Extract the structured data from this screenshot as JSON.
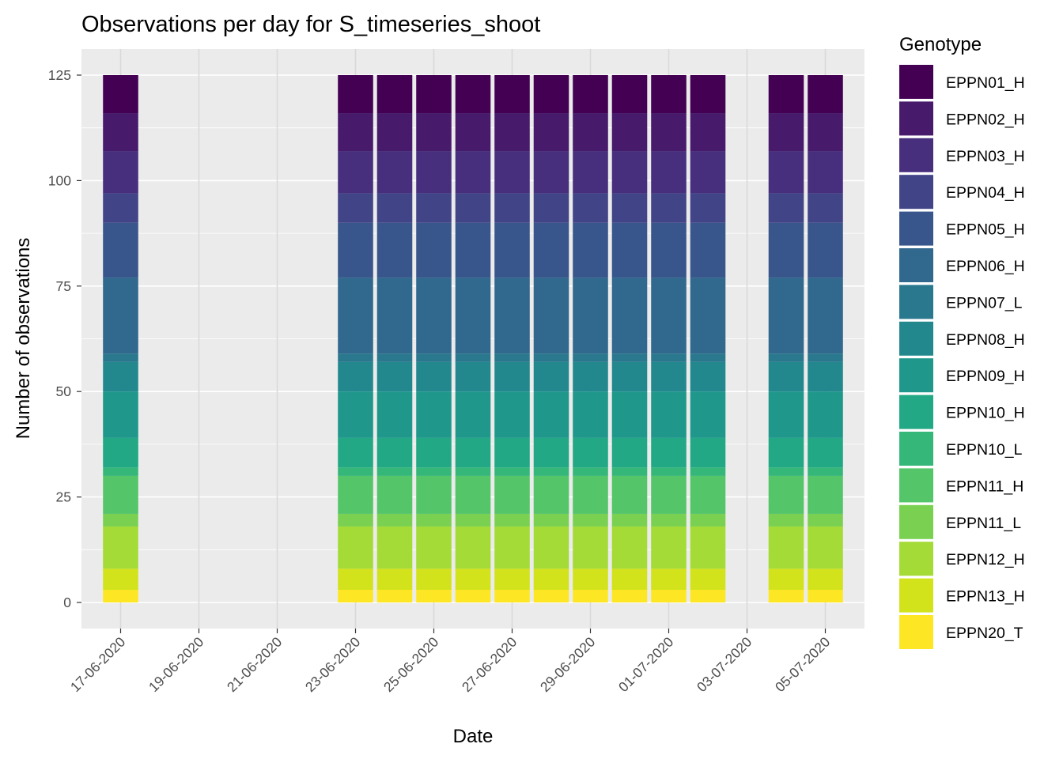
{
  "chart_data": {
    "type": "bar",
    "stacked": true,
    "title": "Observations per day for S_timeseries_shoot",
    "xlabel": "Date",
    "ylabel": "Number of observations",
    "ylim": [
      -5,
      130
    ],
    "y_ticks": [
      0,
      25,
      50,
      75,
      100,
      125
    ],
    "x_ticks": [
      "17-06-2020",
      "19-06-2020",
      "21-06-2020",
      "23-06-2020",
      "25-06-2020",
      "27-06-2020",
      "29-06-2020",
      "01-07-2020",
      "03-07-2020",
      "05-07-2020"
    ],
    "x_range": [
      "16-06-2020",
      "06-07-2020"
    ],
    "grid": true,
    "legend_position": "right",
    "legend_title": "Genotype",
    "categories": [
      "17-06-2020",
      "23-06-2020",
      "24-06-2020",
      "25-06-2020",
      "26-06-2020",
      "27-06-2020",
      "28-06-2020",
      "29-06-2020",
      "30-06-2020",
      "01-07-2020",
      "02-07-2020",
      "04-07-2020",
      "05-07-2020"
    ],
    "series": [
      {
        "name": "EPPN01_H",
        "color": "#440154",
        "values": [
          9,
          9,
          9,
          9,
          9,
          9,
          9,
          9,
          9,
          9,
          9,
          9,
          9
        ]
      },
      {
        "name": "EPPN02_H",
        "color": "#481A6C",
        "values": [
          9,
          9,
          9,
          9,
          9,
          9,
          9,
          9,
          9,
          9,
          9,
          9,
          9
        ]
      },
      {
        "name": "EPPN03_H",
        "color": "#472F7D",
        "values": [
          10,
          10,
          10,
          10,
          10,
          10,
          10,
          10,
          10,
          10,
          10,
          10,
          10
        ]
      },
      {
        "name": "EPPN04_H",
        "color": "#414487",
        "values": [
          7,
          7,
          7,
          7,
          7,
          7,
          7,
          7,
          7,
          7,
          7,
          7,
          7
        ]
      },
      {
        "name": "EPPN05_H",
        "color": "#39568C",
        "values": [
          13,
          13,
          13,
          13,
          13,
          13,
          13,
          13,
          13,
          13,
          13,
          13,
          13
        ]
      },
      {
        "name": "EPPN06_H",
        "color": "#31688E",
        "values": [
          18,
          18,
          18,
          18,
          18,
          18,
          18,
          18,
          18,
          18,
          18,
          18,
          18
        ]
      },
      {
        "name": "EPPN07_L",
        "color": "#2A788E",
        "values": [
          2,
          2,
          2,
          2,
          2,
          2,
          2,
          2,
          2,
          2,
          2,
          2,
          2
        ]
      },
      {
        "name": "EPPN08_H",
        "color": "#23888E",
        "values": [
          7,
          7,
          7,
          7,
          7,
          7,
          7,
          7,
          7,
          7,
          7,
          7,
          7
        ]
      },
      {
        "name": "EPPN09_H",
        "color": "#1F988B",
        "values": [
          11,
          11,
          11,
          11,
          11,
          11,
          11,
          11,
          11,
          11,
          11,
          11,
          11
        ]
      },
      {
        "name": "EPPN10_H",
        "color": "#22A884",
        "values": [
          7,
          7,
          7,
          7,
          7,
          7,
          7,
          7,
          7,
          7,
          7,
          7,
          7
        ]
      },
      {
        "name": "EPPN10_L",
        "color": "#35B779",
        "values": [
          2,
          2,
          2,
          2,
          2,
          2,
          2,
          2,
          2,
          2,
          2,
          2,
          2
        ]
      },
      {
        "name": "EPPN11_H",
        "color": "#54C568",
        "values": [
          9,
          9,
          9,
          9,
          9,
          9,
          9,
          9,
          9,
          9,
          9,
          9,
          9
        ]
      },
      {
        "name": "EPPN11_L",
        "color": "#7AD151",
        "values": [
          3,
          3,
          3,
          3,
          3,
          3,
          3,
          3,
          3,
          3,
          3,
          3,
          3
        ]
      },
      {
        "name": "EPPN12_H",
        "color": "#A5DB36",
        "values": [
          10,
          10,
          10,
          10,
          10,
          10,
          10,
          10,
          10,
          10,
          10,
          10,
          10
        ]
      },
      {
        "name": "EPPN13_H",
        "color": "#D2E21B",
        "values": [
          5,
          5,
          5,
          5,
          5,
          5,
          5,
          5,
          5,
          5,
          5,
          5,
          5
        ]
      },
      {
        "name": "EPPN20_T",
        "color": "#FDE725",
        "values": [
          3,
          3,
          3,
          3,
          3,
          3,
          3,
          3,
          3,
          3,
          3,
          3,
          3
        ]
      }
    ]
  }
}
